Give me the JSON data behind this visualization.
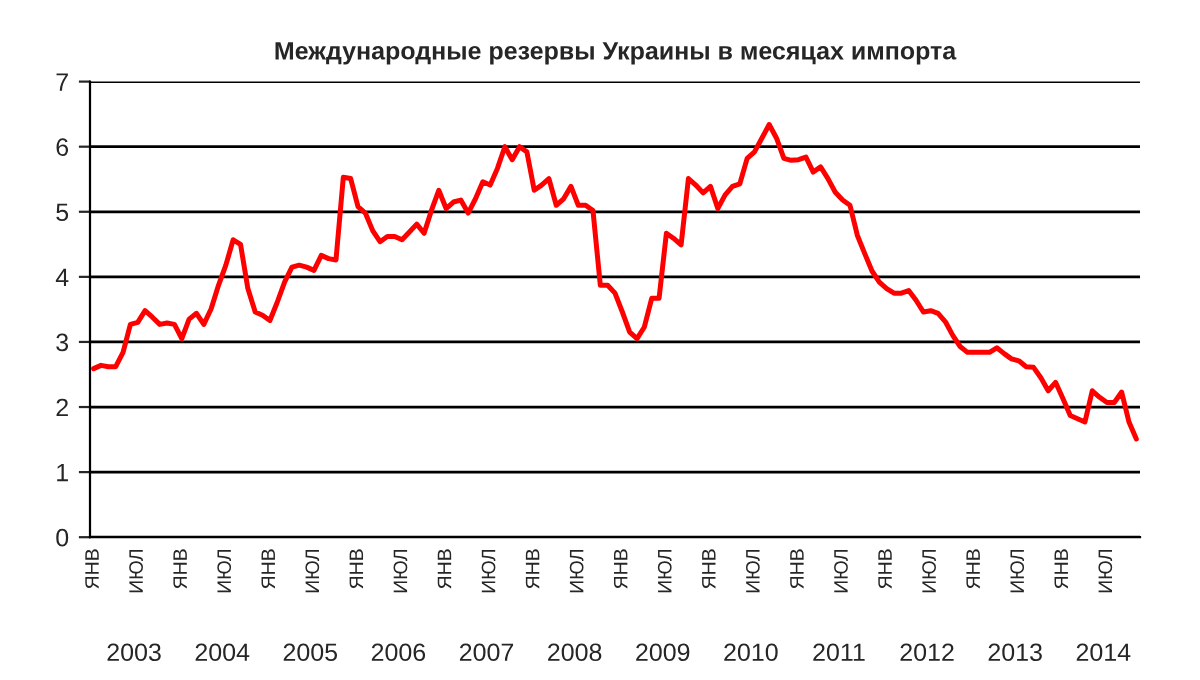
{
  "chart_data": {
    "type": "line",
    "title": "Международные резервы Украины в месяцах импорта",
    "categories": [
      "ЯНВ",
      null,
      null,
      null,
      null,
      null,
      "ИЮЛ",
      null,
      null,
      null,
      null,
      null,
      "ЯНВ",
      null,
      null,
      null,
      null,
      null,
      "ИЮЛ",
      null,
      null,
      null,
      null,
      null,
      "ЯНВ",
      null,
      null,
      null,
      null,
      null,
      "ИЮЛ",
      null,
      null,
      null,
      null,
      null,
      "ЯНВ",
      null,
      null,
      null,
      null,
      null,
      "ИЮЛ",
      null,
      null,
      null,
      null,
      null,
      "ЯНВ",
      null,
      null,
      null,
      null,
      null,
      "ИЮЛ",
      null,
      null,
      null,
      null,
      null,
      "ЯНВ",
      null,
      null,
      null,
      null,
      null,
      "ИЮЛ",
      null,
      null,
      null,
      null,
      null,
      "ЯНВ",
      null,
      null,
      null,
      null,
      null,
      "ИЮЛ",
      null,
      null,
      null,
      null,
      null,
      "ЯНВ",
      null,
      null,
      null,
      null,
      null,
      "ИЮЛ",
      null,
      null,
      null,
      null,
      null,
      "ЯНВ",
      null,
      null,
      null,
      null,
      null,
      "ИЮЛ",
      null,
      null,
      null,
      null,
      null,
      "ЯНВ",
      null,
      null,
      null,
      null,
      null,
      "ИЮЛ",
      null,
      null,
      null,
      null,
      null,
      "ЯНВ",
      null,
      null,
      null,
      null,
      null,
      "ИЮЛ",
      null,
      null,
      null,
      null,
      null,
      "ЯНВ",
      null,
      null,
      null,
      null,
      null,
      "ИЮЛ",
      null,
      null,
      null,
      null
    ],
    "series": [
      {
        "color": "#ff0000",
        "values": [
          2.59,
          2.64,
          2.62,
          2.62,
          2.84,
          3.27,
          3.3,
          3.48,
          3.38,
          3.27,
          3.29,
          3.27,
          3.05,
          3.35,
          3.44,
          3.27,
          3.51,
          3.87,
          4.18,
          4.57,
          4.5,
          3.82,
          3.46,
          3.41,
          3.33,
          3.61,
          3.92,
          4.15,
          4.18,
          4.15,
          4.1,
          4.33,
          4.28,
          4.26,
          5.53,
          5.51,
          5.08,
          4.98,
          4.71,
          4.54,
          4.62,
          4.62,
          4.57,
          4.69,
          4.81,
          4.67,
          5.02,
          5.33,
          5.05,
          5.15,
          5.18,
          4.98,
          5.2,
          5.46,
          5.41,
          5.67,
          6.0,
          5.8,
          6.0,
          5.92,
          5.33,
          5.41,
          5.51,
          5.1,
          5.2,
          5.39,
          5.1,
          5.1,
          5.02,
          3.87,
          3.87,
          3.75,
          3.46,
          3.15,
          3.05,
          3.23,
          3.67,
          3.67,
          4.67,
          4.59,
          4.49,
          5.51,
          5.41,
          5.29,
          5.39,
          5.05,
          5.26,
          5.39,
          5.43,
          5.82,
          5.92,
          6.13,
          6.34,
          6.13,
          5.82,
          5.79,
          5.8,
          5.84,
          5.61,
          5.69,
          5.51,
          5.3,
          5.18,
          5.1,
          4.64,
          4.36,
          4.09,
          3.92,
          3.82,
          3.75,
          3.75,
          3.79,
          3.64,
          3.46,
          3.48,
          3.44,
          3.31,
          3.1,
          2.93,
          2.84,
          2.84,
          2.84,
          2.84,
          2.91,
          2.82,
          2.74,
          2.71,
          2.62,
          2.61,
          2.45,
          2.25,
          2.38,
          2.13,
          1.87,
          1.82,
          1.77,
          2.25,
          2.15,
          2.07,
          2.07,
          2.23,
          1.77,
          1.51
        ]
      }
    ],
    "ylim": [
      0,
      7
    ],
    "yticks": [
      0,
      1,
      2,
      3,
      4,
      5,
      6,
      7
    ],
    "grid": "y",
    "annotations": [
      "2003",
      "2004",
      "2005",
      "2006",
      "2007",
      "2008",
      "2009",
      "2010",
      "2011",
      "2012",
      "2013",
      "2014"
    ]
  }
}
